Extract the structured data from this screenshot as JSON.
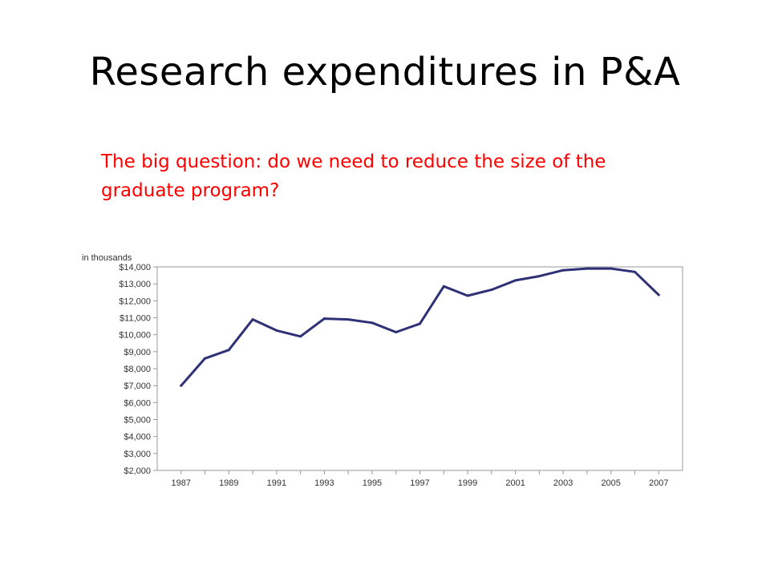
{
  "slide": {
    "title": "Research expenditures in P&A",
    "subtitle": "The big question: do we need to reduce the size of the graduate program?"
  },
  "colors": {
    "title": "#000000",
    "subtitle": "#ff0000",
    "line": "#2e3175",
    "grid": "#999999"
  },
  "chart_data": {
    "type": "line",
    "unit_label": "in thousands",
    "x": [
      1987,
      1988,
      1989,
      1990,
      1991,
      1992,
      1993,
      1994,
      1995,
      1996,
      1997,
      1998,
      1999,
      2000,
      2001,
      2002,
      2003,
      2004,
      2005,
      2006,
      2007
    ],
    "series": [
      {
        "values": [
          7000,
          8600,
          9100,
          10900,
          10250,
          9900,
          10950,
          10900,
          10700,
          10150,
          10650,
          12850,
          12300,
          12650,
          13200,
          13450,
          13800,
          13900,
          13900,
          13700,
          12350
        ]
      }
    ],
    "x_tick_labels": [
      "1987",
      "1989",
      "1991",
      "1993",
      "1995",
      "1997",
      "1999",
      "2001",
      "2003",
      "2005",
      "2007"
    ],
    "y_tick_values": [
      2000,
      3000,
      4000,
      5000,
      6000,
      7000,
      8000,
      9000,
      10000,
      11000,
      12000,
      13000,
      14000
    ],
    "y_tick_labels": [
      "$2,000",
      "$3,000",
      "$4,000",
      "$5,000",
      "$6,000",
      "$7,000",
      "$8,000",
      "$9,000",
      "$10,000",
      "$11,000",
      "$12,000",
      "$13,000",
      "$14,000"
    ],
    "ylim": [
      2000,
      14000
    ],
    "xlim": [
      1986,
      2008
    ],
    "grid": false,
    "legend": "none"
  }
}
